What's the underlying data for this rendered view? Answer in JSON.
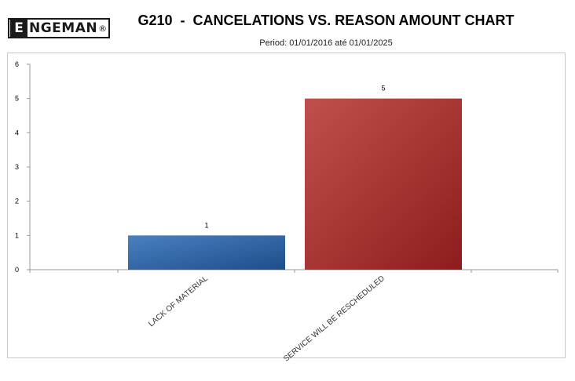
{
  "header": {
    "logo_letter": "E",
    "logo_text": "NGEMAN",
    "logo_mark": "®",
    "title": "G210  -  CANCELATIONS VS. REASON AMOUNT CHART",
    "subtitle": "Period: 01/01/2016 até 01/01/2025"
  },
  "chart_data": {
    "type": "bar",
    "categories": [
      "LACK OF MATERIAL",
      "SERVICE WILL BE RESCHEDULED"
    ],
    "values": [
      1,
      5
    ],
    "data_labels": [
      "1",
      "5"
    ],
    "ylim": [
      0,
      6
    ],
    "yticks": [
      0,
      1,
      2,
      3,
      4,
      5,
      6
    ],
    "grid": false,
    "colors": [
      [
        "#4a7fc1",
        "#1d4e8a"
      ],
      [
        "#c0504d",
        "#8e1c1c"
      ]
    ]
  }
}
